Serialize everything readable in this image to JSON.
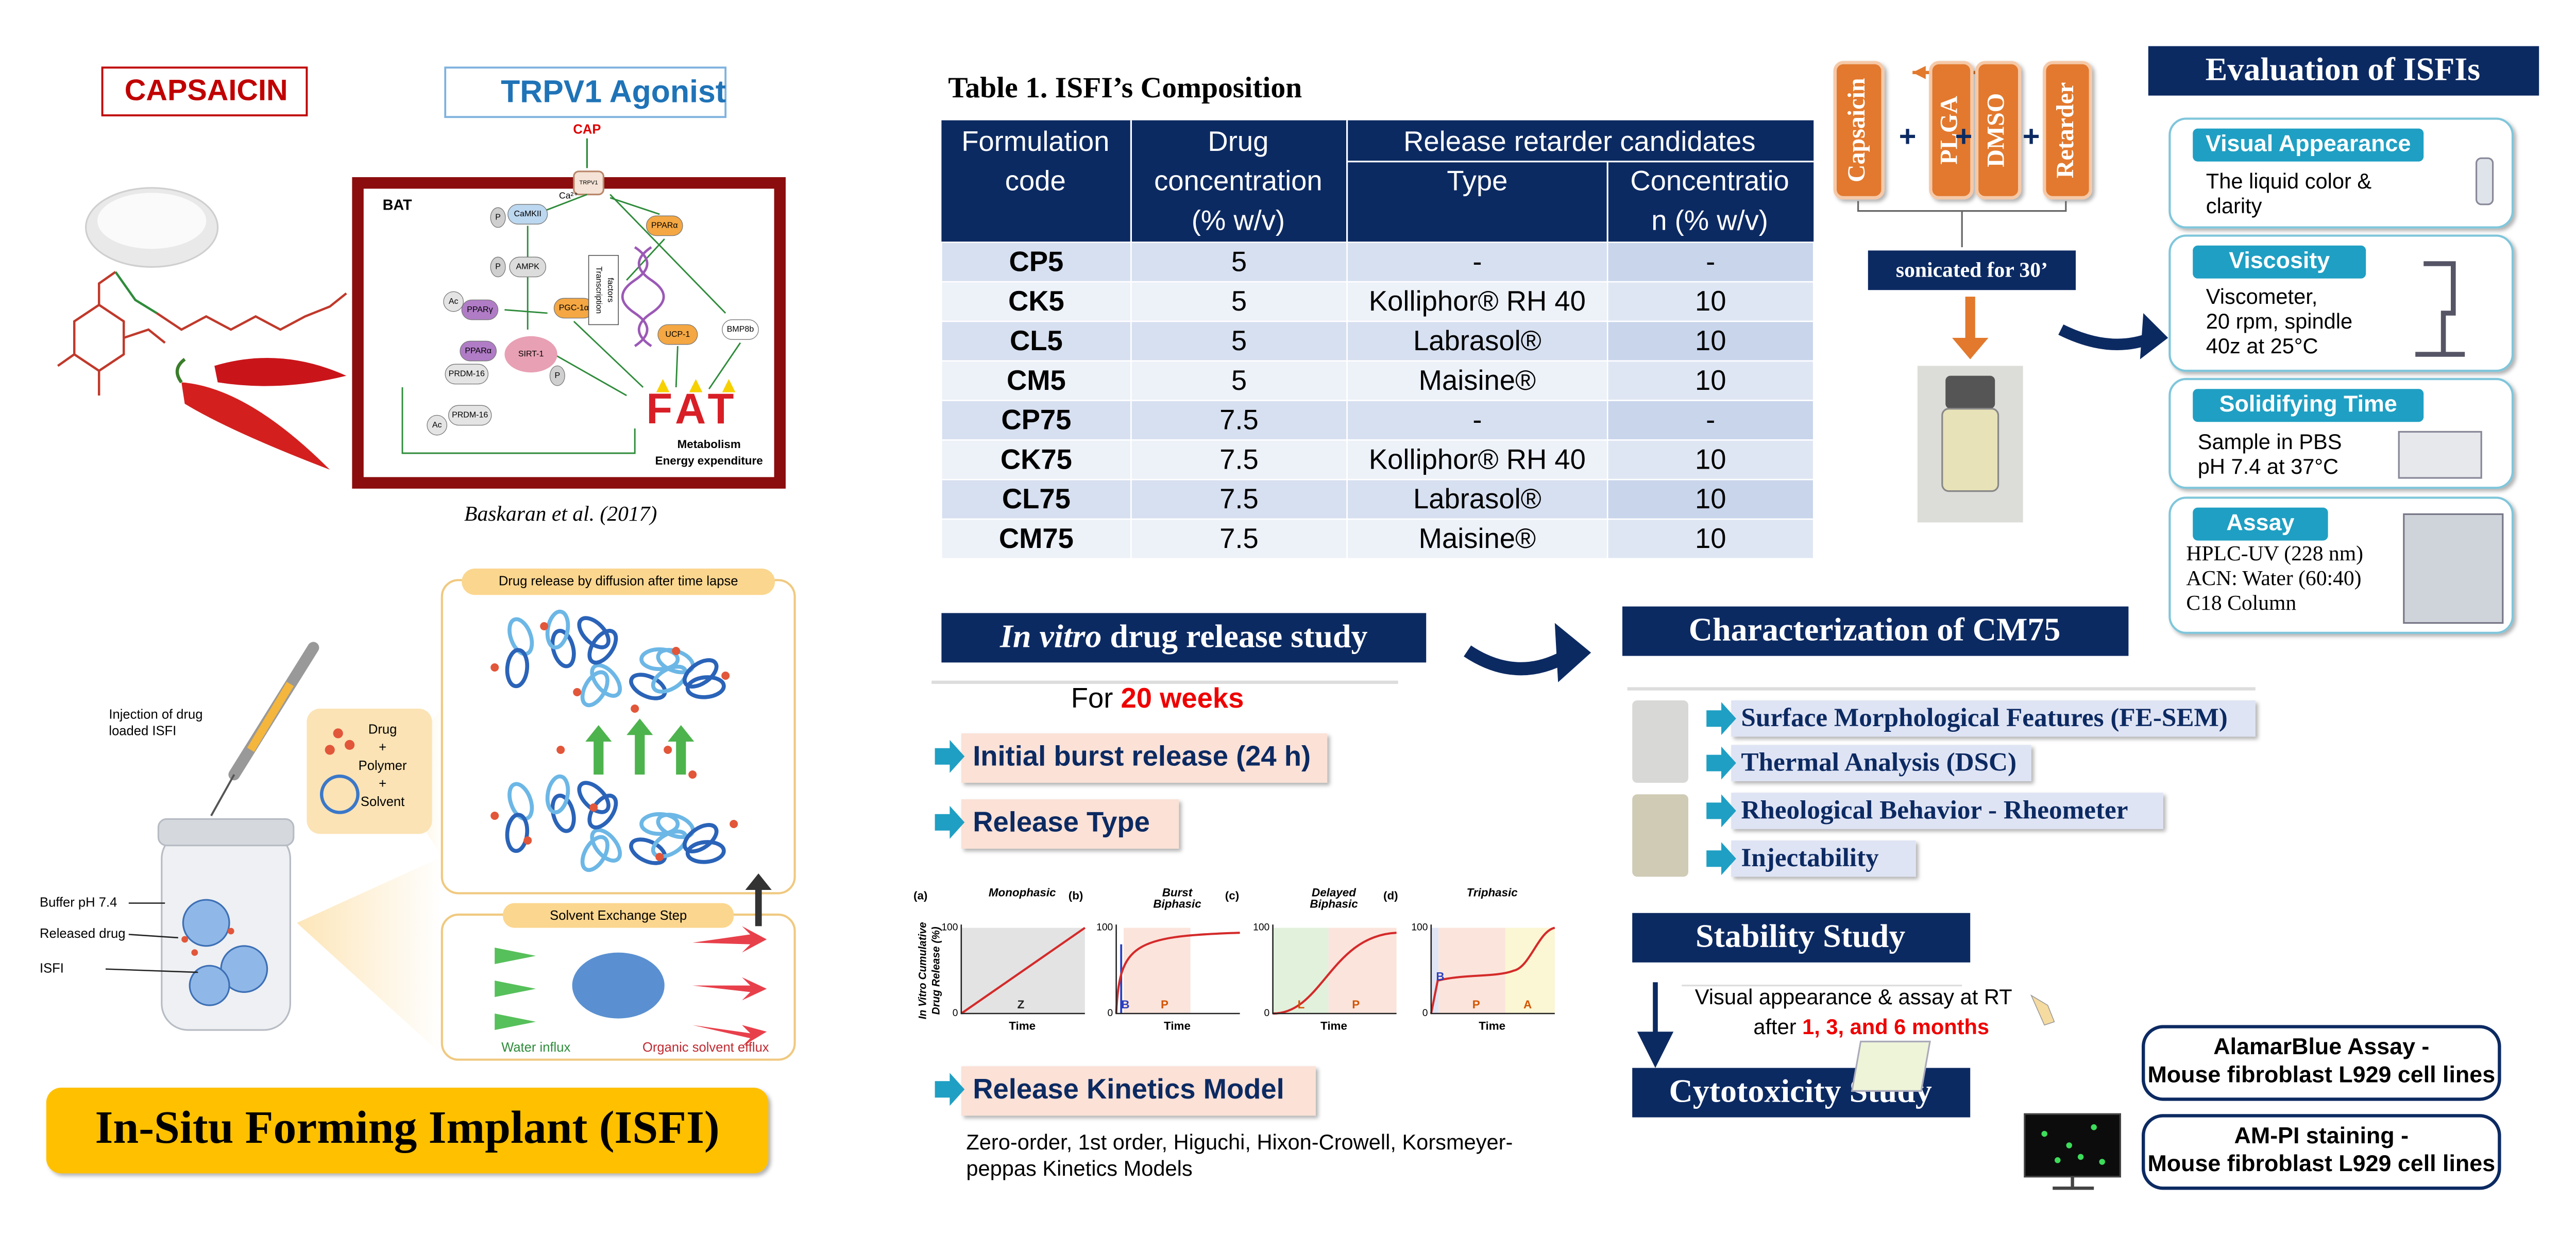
{
  "left": {
    "capsaicin": "CAPSAICIN",
    "agonist": "TRPV1 Agonist",
    "citation": "Baskaran et al. (2017)",
    "pathway": {
      "cap": "CAP",
      "bat": "BAT",
      "channel": "TRPV1",
      "ca": "Ca²⁺",
      "nodes": [
        "CaMKII",
        "AMPK",
        "PPARγ",
        "PPARα",
        "SIRT-1",
        "PGC-1α",
        "PPARα",
        "UCP-1",
        "BMP8b",
        "PRDM-16",
        "PRDM-16",
        "Ac",
        "Ac",
        "P",
        "P",
        "P"
      ],
      "transcription": [
        "Transcription",
        "factors"
      ],
      "fat": "FAT",
      "metabolism": "Metabolism",
      "energy": "Energy expenditure"
    }
  },
  "isfi": {
    "diffusion": "Drug release by diffusion after time lapse",
    "injection": [
      "Injection of drug",
      "loaded ISFI"
    ],
    "drug_box": [
      "Drug",
      "+",
      "Polymer",
      "+",
      "Solvent"
    ],
    "jar_labels": [
      "Buffer pH 7.4",
      "Released drug",
      "ISFI"
    ],
    "exchange": "Solvent Exchange Step",
    "water": "Water influx",
    "efflux": "Organic solvent efflux",
    "banner": "In-Situ Forming Implant (ISFI)"
  },
  "table": {
    "title": "Table 1. ISFI’s Composition",
    "header": {
      "code": [
        "Formulation",
        "code"
      ],
      "drug": [
        "Drug",
        "concentration",
        "(% w/v)"
      ],
      "retarder": "Release retarder candidates",
      "type": "Type",
      "concentration": [
        "Concentratio",
        "n (% w/v)"
      ]
    },
    "rows": [
      [
        "CP5",
        5,
        "-",
        "-"
      ],
      [
        "CK5",
        5,
        "Kolliphor® RH 40",
        10
      ],
      [
        "CL5",
        5,
        "Labrasol®",
        10
      ],
      [
        "CM5",
        5,
        "Maisine®",
        10
      ],
      [
        "CP75",
        7.5,
        "-",
        "-"
      ],
      [
        "CK75",
        7.5,
        "Kolliphor® RH 40",
        10
      ],
      [
        "CL75",
        7.5,
        "Labrasol®",
        10
      ],
      [
        "CM75",
        7.5,
        "Maisine®",
        10
      ]
    ]
  },
  "process": {
    "components": [
      "Capsaicin",
      "PLGA",
      "DMSO",
      "Retarder"
    ],
    "plus": [
      "+",
      "+",
      "+"
    ],
    "sonication": "sonicated for 30’"
  },
  "evaluation": {
    "title": "Evaluation of ISFIs",
    "items": [
      {
        "title": "Visual Appearance",
        "lines": [
          "The liquid color &",
          "clarity"
        ]
      },
      {
        "title": "Viscosity",
        "lines": [
          "Viscometer,",
          "20 rpm, spindle",
          "40z at 25°C"
        ]
      },
      {
        "title": "Solidifying Time",
        "lines": [
          "Sample in PBS",
          "pH 7.4 at 37°C"
        ]
      },
      {
        "title": "Assay",
        "lines": [
          "HPLC-UV (228 nm)",
          "ACN: Water (60:40)",
          "C18 Column"
        ]
      }
    ]
  },
  "release": {
    "title": [
      "In vitro",
      " drug release study"
    ],
    "duration": [
      "For ",
      "20 weeks"
    ],
    "items": [
      "Initial burst release (24 h)",
      "Release Type",
      "Release Kinetics Model"
    ],
    "charts": {
      "ylabel": [
        "In Vitro Cumulative",
        "Drug Release (%)"
      ],
      "ytop": "100",
      "ybottom": "0",
      "xlabel": "Time",
      "panels": [
        {
          "letter": "(a)",
          "name": [
            "Monophasic"
          ],
          "phases": [
            "Z"
          ]
        },
        {
          "letter": "(b)",
          "name": [
            "Burst",
            "Biphasic"
          ],
          "phases": [
            "B",
            "P"
          ]
        },
        {
          "letter": "(c)",
          "name": [
            "Delayed",
            "Biphasic"
          ],
          "phases": [
            "L",
            "P"
          ]
        },
        {
          "letter": "(d)",
          "name": [
            "Triphasic"
          ],
          "phases": [
            "B",
            "P",
            "A"
          ]
        }
      ]
    },
    "kinetics": [
      "Zero-order, 1st order, Higuchi, Hixon-Crowell, Korsmeyer-",
      "peppas Kinetics Models"
    ]
  },
  "characterization": {
    "title": "Characterization of CM75",
    "items": [
      "Surface Morphological Features (FE-SEM)",
      "Thermal Analysis (DSC)",
      "Rheological Behavior - Rheometer",
      "Injectability"
    ]
  },
  "stability": {
    "title": "Stability Study",
    "line1": "Visual appearance & assay at RT",
    "line2": [
      "after ",
      "1, 3, and 6 months"
    ]
  },
  "cytotoxicity": {
    "title": "Cytotoxicity Study",
    "assays": [
      [
        "AlamarBlue Assay -",
        "Mouse fibroblast L929 cell lines"
      ],
      [
        "AM-PI staining -",
        "Mouse fibroblast L929 cell lines"
      ]
    ]
  }
}
